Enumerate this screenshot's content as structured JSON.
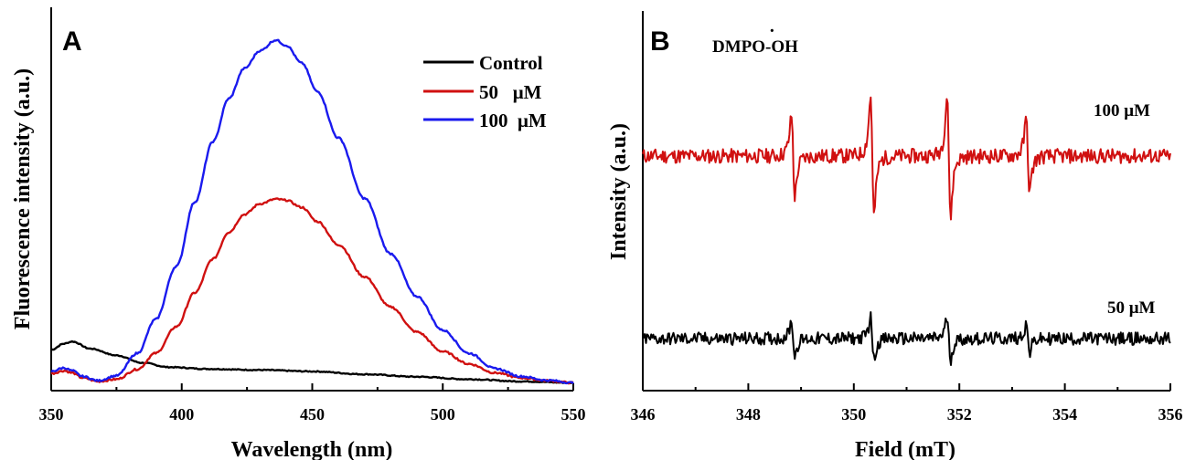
{
  "chart_data": [
    {
      "panel": "A",
      "type": "line",
      "xlabel": "Wavelength (nm)",
      "ylabel": "Fluorescence intensity (a.u.)",
      "xlim": [
        350,
        550
      ],
      "xticks": [
        350,
        400,
        450,
        500,
        550
      ],
      "ylim": [
        0,
        100
      ],
      "y_tick_labels": false,
      "legend_position": "top-right",
      "series": [
        {
          "name": "Control",
          "color": "#000000",
          "x": [
            350,
            355,
            358,
            365,
            375,
            385,
            395,
            410,
            430,
            450,
            470,
            490,
            510,
            530,
            550
          ],
          "y": [
            11.5,
            13.2,
            13.8,
            11.8,
            9.9,
            7.8,
            6.6,
            6.1,
            5.8,
            5.4,
            4.6,
            3.9,
            3.2,
            2.6,
            2.2
          ]
        },
        {
          "name": "50   μM",
          "color": "#d01010",
          "x": [
            350,
            355,
            358,
            362,
            368,
            375,
            383,
            390,
            398,
            405,
            412,
            418,
            424,
            430,
            436,
            440,
            446,
            452,
            460,
            470,
            480,
            490,
            500,
            510,
            520,
            530,
            540,
            550
          ],
          "y": [
            4.8,
            5.6,
            5.0,
            3.6,
            2.6,
            3.2,
            6.0,
            10.5,
            18.0,
            27.5,
            37.0,
            44.5,
            49.5,
            52.5,
            53.8,
            53.5,
            51.5,
            47.5,
            41.0,
            32.0,
            23.5,
            16.5,
            11.0,
            7.5,
            5.0,
            3.6,
            2.8,
            2.2
          ]
        },
        {
          "name": "100  μM",
          "color": "#1a1aee",
          "x": [
            350,
            355,
            358,
            362,
            368,
            375,
            383,
            390,
            398,
            405,
            412,
            418,
            424,
            430,
            436,
            440,
            446,
            452,
            460,
            470,
            480,
            490,
            500,
            510,
            520,
            530,
            540,
            550
          ],
          "y": [
            5.4,
            6.4,
            5.6,
            4.0,
            2.8,
            4.2,
            10.5,
            20.0,
            35.0,
            53.0,
            70.0,
            82.0,
            90.5,
            95.5,
            98.5,
            97.0,
            92.0,
            84.0,
            71.0,
            54.0,
            38.5,
            26.5,
            17.0,
            10.5,
            6.2,
            4.0,
            2.9,
            2.2
          ]
        }
      ]
    },
    {
      "panel": "B",
      "type": "line",
      "annotation": "DMPO-OH",
      "annotation_dot": "·",
      "xlabel": "Field (mT)",
      "ylabel": "Intensity (a.u.)",
      "xlim": [
        346,
        356
      ],
      "xticks": [
        346,
        348,
        350,
        352,
        354,
        356
      ],
      "y_tick_labels": false,
      "peak_centers_mT": [
        348.85,
        350.35,
        351.8,
        353.3
      ],
      "series": [
        {
          "name": "100 μM",
          "color": "#d01010",
          "baseline": 0,
          "peak_amplitudes": [
            42,
            62,
            64,
            38
          ]
        },
        {
          "name": "50 μM",
          "color": "#000000",
          "baseline": 0,
          "peak_amplitudes": [
            18,
            22,
            22,
            15
          ]
        }
      ]
    }
  ]
}
